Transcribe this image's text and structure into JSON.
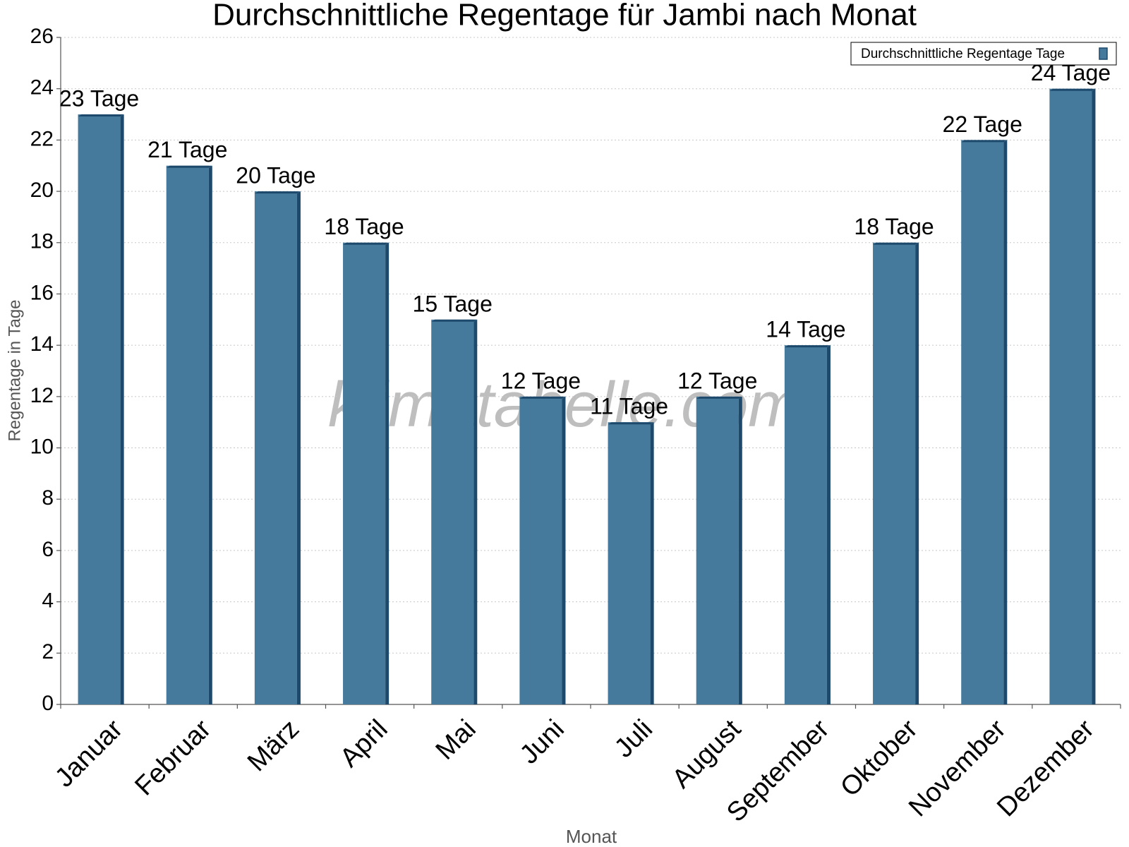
{
  "chart_data": {
    "type": "bar",
    "title": "Durchschnittliche Regentage für Jambi nach Monat",
    "x_label": "Monat",
    "y_label": "Regentage in Tage",
    "watermark": "klimatabelle.com",
    "categories": [
      "Januar",
      "Februar",
      "März",
      "April",
      "Mai",
      "Juni",
      "Juli",
      "August",
      "September",
      "Oktober",
      "November",
      "Dezember"
    ],
    "series": [
      {
        "name": "Durchschnittliche Regentage Tage",
        "color": "#467a9c",
        "values": [
          23,
          21,
          20,
          18,
          15,
          12,
          11,
          12,
          14,
          18,
          22,
          24
        ],
        "value_labels": [
          "23 Tage",
          "21 Tage",
          "20 Tage",
          "18 Tage",
          "15 Tage",
          "12 Tage",
          "11 Tage",
          "12 Tage",
          "14 Tage",
          "18 Tage",
          "22 Tage",
          "24 Tage"
        ]
      }
    ],
    "ylim": [
      0,
      26
    ],
    "yticks": [
      0,
      2,
      4,
      6,
      8,
      10,
      12,
      14,
      16,
      18,
      20,
      22,
      24,
      26
    ],
    "grid": true,
    "legend": "top-right"
  }
}
